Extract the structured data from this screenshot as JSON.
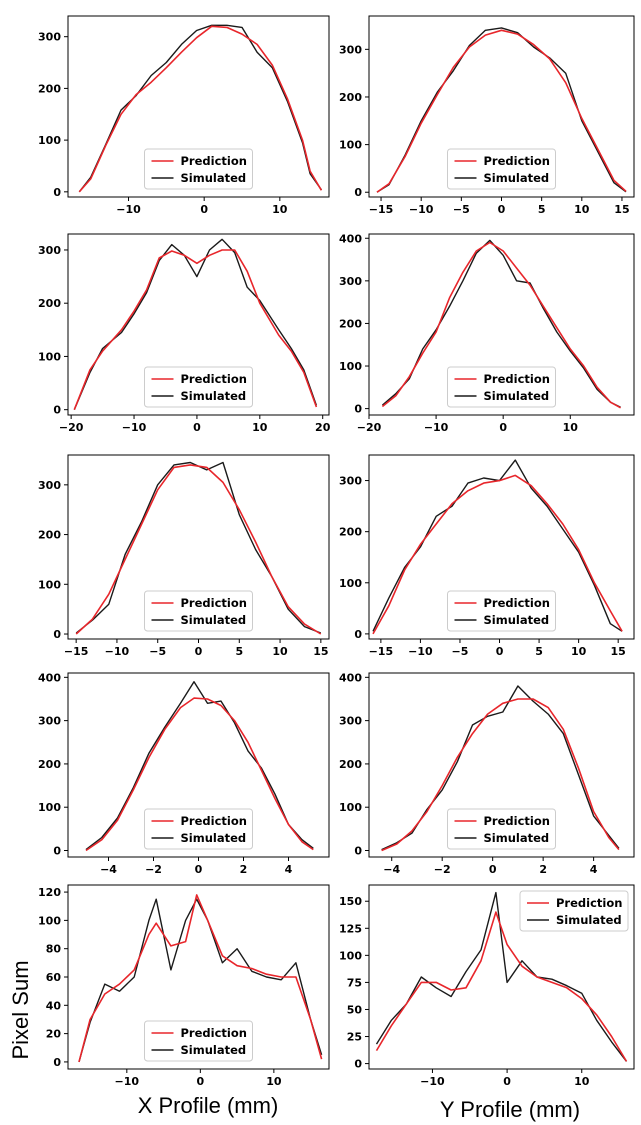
{
  "figure": {
    "ylabel": "Pixel Sum",
    "xlabel_left": "X Profile (mm)",
    "xlabel_right": "Y Profile (mm)",
    "legend_labels": [
      "Prediction",
      "Simulated"
    ],
    "colors": {
      "prediction": "#e8262b",
      "simulated": "#1a1a1a"
    }
  },
  "chart_data": [
    {
      "type": "line",
      "xlim": [
        -18,
        16.5
      ],
      "ylim": [
        -10,
        340
      ],
      "xticks": [
        -10,
        0,
        10
      ],
      "yticks": [
        0,
        100,
        200,
        300
      ],
      "legend": "bottom-center",
      "x": [
        -16.5,
        -15,
        -13,
        -11,
        -9,
        -7,
        -5,
        -3,
        -1,
        1,
        3,
        5,
        7,
        9,
        11,
        13,
        14,
        15.5
      ],
      "series": [
        {
          "name": "Prediction",
          "values": [
            0,
            25,
            90,
            150,
            188,
            212,
            240,
            270,
            298,
            320,
            318,
            305,
            285,
            245,
            180,
            100,
            40,
            3
          ]
        },
        {
          "name": "Simulated",
          "values": [
            0,
            28,
            92,
            158,
            186,
            225,
            250,
            285,
            312,
            322,
            322,
            318,
            270,
            240,
            175,
            95,
            35,
            4
          ]
        }
      ]
    },
    {
      "type": "line",
      "xlim": [
        -16.5,
        16.5
      ],
      "ylim": [
        -10,
        370
      ],
      "xticks": [
        -15,
        -10,
        -5,
        0,
        5,
        10,
        15
      ],
      "yticks": [
        0,
        100,
        200,
        300
      ],
      "legend": "bottom-center",
      "x": [
        -15.5,
        -14,
        -12,
        -10,
        -8,
        -6,
        -4,
        -2,
        0,
        2,
        4,
        6,
        8,
        10,
        12,
        14,
        15.5
      ],
      "series": [
        {
          "name": "Prediction",
          "values": [
            0,
            18,
            75,
            145,
            205,
            262,
            305,
            330,
            340,
            332,
            310,
            280,
            230,
            155,
            90,
            25,
            2
          ]
        },
        {
          "name": "Simulated",
          "values": [
            0,
            16,
            78,
            150,
            210,
            255,
            308,
            340,
            345,
            335,
            305,
            282,
            250,
            150,
            85,
            20,
            1
          ]
        }
      ]
    },
    {
      "type": "line",
      "xlim": [
        -20.5,
        21
      ],
      "ylim": [
        -10,
        330
      ],
      "xticks": [
        -20,
        -10,
        0,
        10,
        20
      ],
      "yticks": [
        0,
        100,
        200,
        300
      ],
      "legend": "bottom-center",
      "x": [
        -19.5,
        -17,
        -15,
        -12,
        -10,
        -8,
        -6,
        -4,
        -2,
        0,
        2,
        4,
        6,
        8,
        10,
        13,
        15,
        17,
        19
      ],
      "series": [
        {
          "name": "Prediction",
          "values": [
            0,
            75,
            110,
            150,
            185,
            225,
            285,
            298,
            290,
            275,
            290,
            300,
            300,
            260,
            200,
            140,
            110,
            70,
            5
          ]
        },
        {
          "name": "Simulated",
          "values": [
            0,
            70,
            115,
            145,
            180,
            220,
            280,
            310,
            290,
            250,
            300,
            320,
            295,
            230,
            205,
            150,
            115,
            75,
            8
          ]
        }
      ]
    },
    {
      "type": "line",
      "xlim": [
        -20,
        19.5
      ],
      "ylim": [
        -15,
        410
      ],
      "xticks": [
        -20,
        -10,
        0,
        10
      ],
      "yticks": [
        0,
        100,
        200,
        300,
        400
      ],
      "legend": "bottom-center",
      "x": [
        -18,
        -16,
        -14,
        -12,
        -10,
        -8,
        -6,
        -4,
        -2,
        0,
        2,
        4,
        6,
        8,
        10,
        12,
        14,
        16,
        17.5
      ],
      "series": [
        {
          "name": "Prediction",
          "values": [
            5,
            30,
            75,
            130,
            180,
            260,
            320,
            370,
            390,
            370,
            330,
            290,
            240,
            190,
            140,
            100,
            50,
            15,
            2
          ]
        },
        {
          "name": "Simulated",
          "values": [
            8,
            35,
            70,
            140,
            185,
            240,
            300,
            365,
            395,
            360,
            300,
            295,
            235,
            180,
            135,
            95,
            45,
            15,
            3
          ]
        }
      ]
    },
    {
      "type": "line",
      "xlim": [
        -16,
        16
      ],
      "ylim": [
        -10,
        360
      ],
      "xticks": [
        -15,
        -10,
        -5,
        0,
        5,
        10,
        15
      ],
      "yticks": [
        0,
        100,
        200,
        300
      ],
      "legend": "bottom-center",
      "x": [
        -15,
        -13,
        -11,
        -9,
        -7,
        -5,
        -3,
        -1,
        1,
        3,
        5,
        7,
        9,
        11,
        13,
        15
      ],
      "series": [
        {
          "name": "Prediction",
          "values": [
            0,
            30,
            80,
            150,
            220,
            290,
            335,
            340,
            335,
            305,
            250,
            185,
            115,
            55,
            20,
            0
          ]
        },
        {
          "name": "Simulated",
          "values": [
            2,
            28,
            60,
            160,
            225,
            300,
            340,
            345,
            330,
            345,
            240,
            170,
            115,
            50,
            15,
            2
          ]
        }
      ]
    },
    {
      "type": "line",
      "xlim": [
        -16.5,
        17
      ],
      "ylim": [
        -10,
        350
      ],
      "xticks": [
        -15,
        -10,
        -5,
        0,
        5,
        10,
        15
      ],
      "yticks": [
        0,
        100,
        200,
        300
      ],
      "legend": "bottom-center",
      "x": [
        -16,
        -14,
        -12,
        -10,
        -8,
        -6,
        -4,
        -2,
        0,
        2,
        4,
        6,
        8,
        10,
        12,
        14,
        15.5
      ],
      "series": [
        {
          "name": "Prediction",
          "values": [
            0,
            55,
            125,
            175,
            215,
            255,
            280,
            295,
            300,
            310,
            290,
            255,
            215,
            165,
            100,
            45,
            5
          ]
        },
        {
          "name": "Simulated",
          "values": [
            5,
            70,
            130,
            170,
            230,
            250,
            295,
            305,
            300,
            340,
            285,
            250,
            205,
            160,
            95,
            20,
            5
          ]
        }
      ]
    },
    {
      "type": "line",
      "xlim": [
        -5.8,
        5.8
      ],
      "ylim": [
        -15,
        410
      ],
      "xticks": [
        -4,
        -2,
        0,
        2,
        4
      ],
      "yticks": [
        0,
        100,
        200,
        300,
        400
      ],
      "legend": "bottom-center",
      "x": [
        -5,
        -4.3,
        -3.6,
        -2.9,
        -2.2,
        -1.5,
        -0.8,
        -0.2,
        0.4,
        1,
        1.6,
        2.2,
        2.8,
        3.4,
        4,
        4.6,
        5.1
      ],
      "series": [
        {
          "name": "Prediction",
          "values": [
            0,
            25,
            70,
            140,
            215,
            280,
            330,
            352,
            350,
            335,
            300,
            250,
            185,
            120,
            60,
            20,
            2
          ]
        },
        {
          "name": "Simulated",
          "values": [
            2,
            30,
            75,
            145,
            225,
            285,
            340,
            390,
            340,
            345,
            295,
            230,
            190,
            130,
            60,
            25,
            5
          ]
        }
      ]
    },
    {
      "type": "line",
      "xlim": [
        -4.9,
        5.6
      ],
      "ylim": [
        -15,
        410
      ],
      "xticks": [
        -4,
        -2,
        0,
        2,
        4
      ],
      "yticks": [
        0,
        100,
        200,
        300,
        400
      ],
      "legend": "bottom-center",
      "x": [
        -4.4,
        -3.8,
        -3.2,
        -2.6,
        -2,
        -1.4,
        -0.8,
        -0.2,
        0.4,
        1,
        1.6,
        2.2,
        2.8,
        3.4,
        4,
        4.6,
        5
      ],
      "series": [
        {
          "name": "Prediction",
          "values": [
            0,
            15,
            45,
            90,
            150,
            215,
            270,
            315,
            340,
            350,
            350,
            330,
            280,
            190,
            90,
            30,
            2
          ]
        },
        {
          "name": "Simulated",
          "values": [
            2,
            18,
            40,
            95,
            140,
            205,
            290,
            310,
            320,
            380,
            345,
            315,
            270,
            175,
            80,
            35,
            5
          ]
        }
      ]
    },
    {
      "type": "line",
      "xlim": [
        -18,
        17.5
      ],
      "ylim": [
        -5,
        125
      ],
      "xticks": [
        -10,
        0,
        10
      ],
      "yticks": [
        0,
        20,
        40,
        60,
        80,
        100,
        120
      ],
      "legend": "bottom-center",
      "x": [
        -16.5,
        -15,
        -13,
        -11,
        -9,
        -7,
        -6,
        -4,
        -2,
        -0.5,
        1,
        3,
        5,
        7,
        9,
        11,
        13,
        15,
        16.5
      ],
      "series": [
        {
          "name": "Prediction",
          "values": [
            0,
            30,
            48,
            55,
            65,
            90,
            98,
            82,
            85,
            118,
            100,
            75,
            68,
            66,
            62,
            60,
            60,
            30,
            2
          ]
        },
        {
          "name": "Simulated",
          "values": [
            0,
            28,
            55,
            50,
            60,
            100,
            115,
            65,
            100,
            115,
            100,
            70,
            80,
            64,
            60,
            58,
            70,
            30,
            5
          ]
        }
      ]
    },
    {
      "type": "line",
      "xlim": [
        -18.5,
        17
      ],
      "ylim": [
        -5,
        165
      ],
      "xticks": [
        -10,
        0,
        10
      ],
      "yticks": [
        0,
        25,
        50,
        75,
        100,
        125,
        150
      ],
      "legend": "top-right",
      "x": [
        -17.5,
        -15.5,
        -13.5,
        -11.5,
        -9.5,
        -7.5,
        -5.5,
        -3.5,
        -1.5,
        0,
        2,
        4,
        6,
        8,
        10,
        12,
        14,
        16
      ],
      "series": [
        {
          "name": "Prediction",
          "values": [
            12,
            35,
            55,
            75,
            75,
            68,
            70,
            95,
            140,
            110,
            90,
            80,
            75,
            70,
            60,
            45,
            25,
            2
          ]
        },
        {
          "name": "Simulated",
          "values": [
            18,
            40,
            55,
            80,
            70,
            62,
            85,
            105,
            158,
            75,
            95,
            80,
            78,
            72,
            65,
            40,
            20,
            2
          ]
        }
      ]
    }
  ]
}
